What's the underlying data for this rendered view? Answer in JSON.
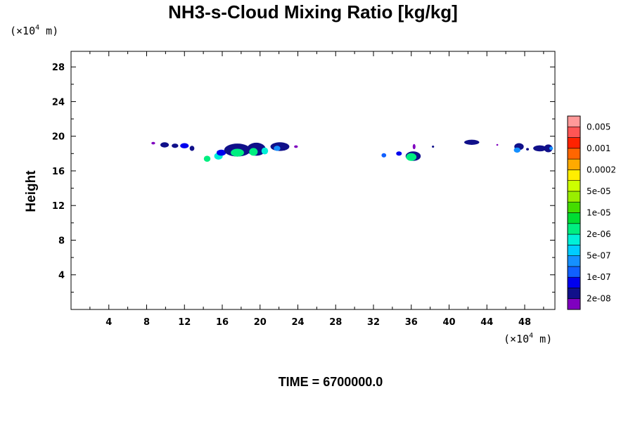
{
  "chart_data": {
    "type": "heatmap",
    "title": "NH3-s-Cloud Mixing Ratio [kg/kg]",
    "ylabel": "Height",
    "x_unit": {
      "prefix": "(×10",
      "exp": "4",
      "suffix": " m)"
    },
    "y_unit": {
      "prefix": "(×10",
      "exp": "4",
      "suffix": " m)"
    },
    "xlim": [
      0,
      51.2
    ],
    "ylim": [
      0,
      29.8
    ],
    "x_ticks": [
      4,
      8,
      12,
      16,
      20,
      24,
      28,
      32,
      36,
      40,
      44,
      48
    ],
    "y_ticks": [
      4,
      8,
      12,
      16,
      20,
      24,
      28
    ],
    "x_tick_labels": [
      "4",
      "8",
      "12",
      "16",
      "20",
      "24",
      "28",
      "32",
      "36",
      "40",
      "44",
      "48"
    ],
    "y_tick_labels": [
      "4",
      "8",
      "12",
      "16",
      "20",
      "24",
      "28"
    ],
    "colorbar": {
      "colors": [
        "#7f00bf",
        "#10108a",
        "#0000ee",
        "#1060ff",
        "#1590ff",
        "#00ccff",
        "#00f0d8",
        "#00ee80",
        "#00dd33",
        "#44dd00",
        "#99ee00",
        "#ccff00",
        "#ffee00",
        "#ffaa00",
        "#ff6600",
        "#ff2200",
        "#ff5555",
        "#ff9999"
      ],
      "labels": [
        "2e-08",
        "1e-07",
        "5e-07",
        "2e-06",
        "1e-05",
        "5e-05",
        "0.0002",
        "0.001",
        "0.005"
      ],
      "label_bin_index": [
        1,
        3,
        5,
        7,
        9,
        11,
        13,
        15,
        17
      ]
    },
    "cloud_patches": [
      {
        "x": 8.7,
        "y": 19.2,
        "rx": 0.2,
        "ry": 0.15,
        "level": 0
      },
      {
        "x": 9.9,
        "y": 19.0,
        "rx": 0.45,
        "ry": 0.3,
        "level": 1
      },
      {
        "x": 11.0,
        "y": 18.9,
        "rx": 0.35,
        "ry": 0.25,
        "level": 1
      },
      {
        "x": 12.0,
        "y": 18.9,
        "rx": 0.45,
        "ry": 0.3,
        "level": 2
      },
      {
        "x": 12.8,
        "y": 18.6,
        "rx": 0.25,
        "ry": 0.3,
        "level": 1
      },
      {
        "x": 14.4,
        "y": 17.4,
        "rx": 0.35,
        "ry": 0.35,
        "level": 7
      },
      {
        "x": 15.6,
        "y": 17.7,
        "rx": 0.45,
        "ry": 0.4,
        "level": 6
      },
      {
        "x": 15.9,
        "y": 18.1,
        "rx": 0.5,
        "ry": 0.35,
        "level": 2
      },
      {
        "x": 17.6,
        "y": 18.4,
        "rx": 1.4,
        "ry": 0.75,
        "level": 1
      },
      {
        "x": 17.6,
        "y": 18.1,
        "rx": 0.7,
        "ry": 0.45,
        "level": 7
      },
      {
        "x": 19.6,
        "y": 18.5,
        "rx": 1.0,
        "ry": 0.75,
        "level": 1
      },
      {
        "x": 19.3,
        "y": 18.2,
        "rx": 0.45,
        "ry": 0.45,
        "level": 7
      },
      {
        "x": 20.5,
        "y": 18.3,
        "rx": 0.35,
        "ry": 0.4,
        "level": 6
      },
      {
        "x": 22.1,
        "y": 18.8,
        "rx": 1.0,
        "ry": 0.5,
        "level": 1
      },
      {
        "x": 21.8,
        "y": 18.6,
        "rx": 0.35,
        "ry": 0.3,
        "level": 4
      },
      {
        "x": 23.8,
        "y": 18.8,
        "rx": 0.2,
        "ry": 0.15,
        "level": 0
      },
      {
        "x": 33.1,
        "y": 17.8,
        "rx": 0.25,
        "ry": 0.25,
        "level": 3
      },
      {
        "x": 34.7,
        "y": 18.0,
        "rx": 0.3,
        "ry": 0.25,
        "level": 2
      },
      {
        "x": 36.2,
        "y": 17.7,
        "rx": 0.8,
        "ry": 0.55,
        "level": 1
      },
      {
        "x": 36.0,
        "y": 17.6,
        "rx": 0.55,
        "ry": 0.45,
        "level": 7
      },
      {
        "x": 36.3,
        "y": 18.8,
        "rx": 0.15,
        "ry": 0.3,
        "level": 0
      },
      {
        "x": 38.3,
        "y": 18.8,
        "rx": 0.12,
        "ry": 0.12,
        "level": 1
      },
      {
        "x": 42.4,
        "y": 19.3,
        "rx": 0.8,
        "ry": 0.3,
        "level": 1
      },
      {
        "x": 45.1,
        "y": 19.0,
        "rx": 0.1,
        "ry": 0.1,
        "level": 0
      },
      {
        "x": 47.4,
        "y": 18.8,
        "rx": 0.5,
        "ry": 0.4,
        "level": 1
      },
      {
        "x": 47.2,
        "y": 18.4,
        "rx": 0.35,
        "ry": 0.3,
        "level": 4
      },
      {
        "x": 48.3,
        "y": 18.5,
        "rx": 0.15,
        "ry": 0.15,
        "level": 1
      },
      {
        "x": 49.6,
        "y": 18.6,
        "rx": 0.7,
        "ry": 0.35,
        "level": 1
      },
      {
        "x": 50.5,
        "y": 18.6,
        "rx": 0.45,
        "ry": 0.45,
        "level": 1
      },
      {
        "x": 50.8,
        "y": 18.6,
        "rx": 0.2,
        "ry": 0.2,
        "level": 4
      }
    ],
    "footer": "TIME = 6700000.0"
  }
}
